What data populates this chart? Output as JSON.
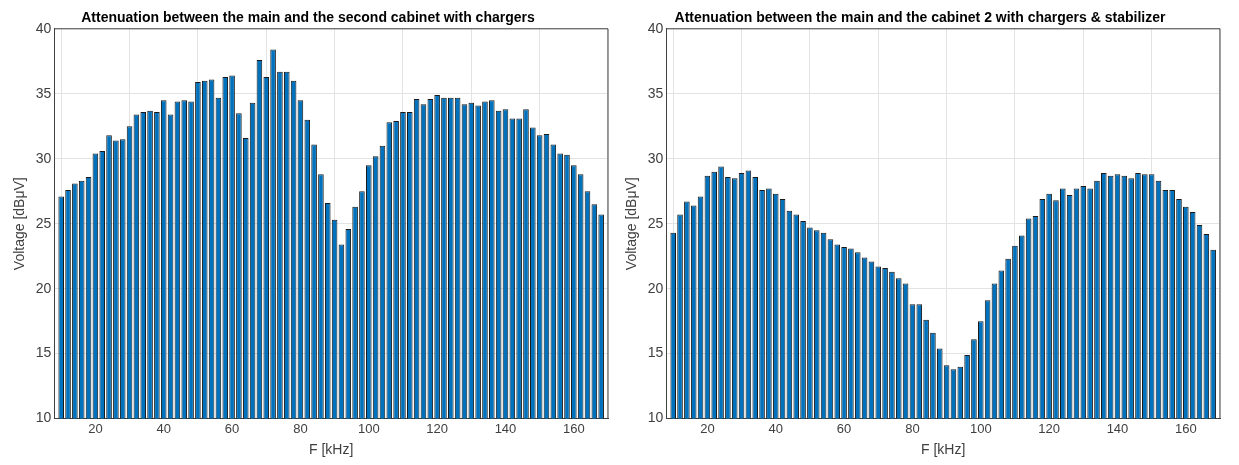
{
  "chart_data": [
    {
      "type": "bar",
      "title": "Attenuation between the main and the second cabinet with chargers",
      "xlabel": "F [kHz]",
      "ylabel": "Voltage [dBμV]",
      "color": "#0072bd",
      "grid": true,
      "xlim": [
        8,
        170
      ],
      "xticks": [
        20,
        40,
        60,
        80,
        100,
        120,
        140,
        160
      ],
      "ylim": [
        10,
        40
      ],
      "yticks": [
        10,
        15,
        20,
        25,
        30,
        35,
        40
      ],
      "x": [
        10,
        12,
        14,
        16,
        18,
        20,
        22,
        24,
        26,
        28,
        30,
        32,
        34,
        36,
        38,
        40,
        42,
        44,
        46,
        48,
        50,
        52,
        54,
        56,
        58,
        60,
        62,
        64,
        66,
        68,
        70,
        72,
        74,
        76,
        78,
        80,
        82,
        84,
        86,
        88,
        90,
        92,
        94,
        96,
        98,
        100,
        102,
        104,
        106,
        108,
        110,
        112,
        114,
        116,
        118,
        120,
        122,
        124,
        126,
        128,
        130,
        132,
        134,
        136,
        138,
        140,
        142,
        144,
        146,
        148,
        150,
        152,
        154,
        156,
        158,
        160,
        162,
        164,
        166,
        168
      ],
      "values": [
        27.1,
        27.6,
        28.1,
        28.3,
        28.6,
        30.4,
        30.6,
        31.8,
        31.4,
        31.5,
        32.5,
        33.4,
        33.6,
        33.7,
        33.6,
        34.5,
        33.4,
        34.4,
        34.5,
        34.4,
        35.9,
        36.0,
        36.1,
        34.7,
        36.3,
        36.4,
        33.5,
        31.6,
        34.3,
        37.6,
        36.3,
        38.4,
        36.7,
        36.7,
        36.0,
        34.5,
        33.0,
        31.1,
        28.8,
        26.6,
        25.3,
        23.4,
        24.6,
        26.3,
        27.5,
        29.5,
        30.2,
        31.0,
        32.8,
        32.9,
        33.6,
        33.6,
        34.6,
        34.2,
        34.6,
        34.9,
        34.7,
        34.7,
        34.7,
        34.2,
        34.3,
        34.1,
        34.4,
        34.5,
        33.7,
        33.8,
        33.1,
        33.1,
        33.8,
        32.4,
        31.8,
        31.9,
        31.1,
        30.4,
        30.3,
        29.5,
        28.8,
        27.5,
        26.5,
        25.7
      ]
    },
    {
      "type": "bar",
      "title": "Attenuation between the main and the cabinet 2 with chargers & stabilizer",
      "xlabel": "F [kHz]",
      "ylabel": "Voltage [dBμV]",
      "color": "#0072bd",
      "grid": true,
      "xlim": [
        8,
        170
      ],
      "xticks": [
        20,
        40,
        60,
        80,
        100,
        120,
        140,
        160
      ],
      "ylim": [
        10,
        40
      ],
      "yticks": [
        10,
        15,
        20,
        25,
        30,
        35,
        40
      ],
      "x": [
        10,
        12,
        14,
        16,
        18,
        20,
        22,
        24,
        26,
        28,
        30,
        32,
        34,
        36,
        38,
        40,
        42,
        44,
        46,
        48,
        50,
        52,
        54,
        56,
        58,
        60,
        62,
        64,
        66,
        68,
        70,
        72,
        74,
        76,
        78,
        80,
        82,
        84,
        86,
        88,
        90,
        92,
        94,
        96,
        98,
        100,
        102,
        104,
        106,
        108,
        110,
        112,
        114,
        116,
        118,
        120,
        122,
        124,
        126,
        128,
        130,
        132,
        134,
        136,
        138,
        140,
        142,
        144,
        146,
        148,
        150,
        152,
        154,
        156,
        158,
        160,
        162,
        164,
        166,
        168
      ],
      "values": [
        24.3,
        25.7,
        26.7,
        26.4,
        27.1,
        28.7,
        29.0,
        29.4,
        28.6,
        28.5,
        28.9,
        29.1,
        28.6,
        27.6,
        27.7,
        27.3,
        26.9,
        26.0,
        25.7,
        25.2,
        24.7,
        24.5,
        24.3,
        23.8,
        23.4,
        23.2,
        23.1,
        22.8,
        22.4,
        22.1,
        21.7,
        21.6,
        21.3,
        20.8,
        20.4,
        18.8,
        18.8,
        17.6,
        16.6,
        15.4,
        14.1,
        13.8,
        14.0,
        14.9,
        16.1,
        17.5,
        19.1,
        20.4,
        21.4,
        22.3,
        23.3,
        24.1,
        25.4,
        25.6,
        26.9,
        27.3,
        26.8,
        27.7,
        27.2,
        27.7,
        27.9,
        27.7,
        28.3,
        28.9,
        28.7,
        28.8,
        28.7,
        28.5,
        28.9,
        28.8,
        28.8,
        28.3,
        27.6,
        27.6,
        26.9,
        26.3,
        25.9,
        24.9,
        24.2,
        23.0
      ]
    }
  ]
}
